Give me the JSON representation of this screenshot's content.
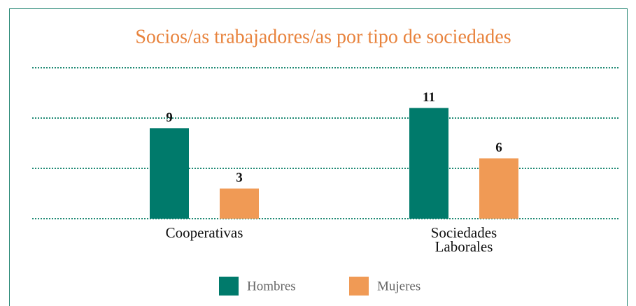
{
  "chart_data": {
    "type": "bar",
    "title": "Socios/as trabajadores/as por tipo de sociedades",
    "categories": [
      "Cooperativas",
      "Sociedades Laborales"
    ],
    "series": [
      {
        "name": "Hombres",
        "color": "#007a6b",
        "values": [
          9,
          11
        ]
      },
      {
        "name": "Mujeres",
        "color": "#f09a55",
        "values": [
          3,
          6
        ]
      }
    ],
    "ylim": [
      0,
      15
    ],
    "yticks": [
      0,
      5,
      10,
      15
    ],
    "grid": true
  }
}
